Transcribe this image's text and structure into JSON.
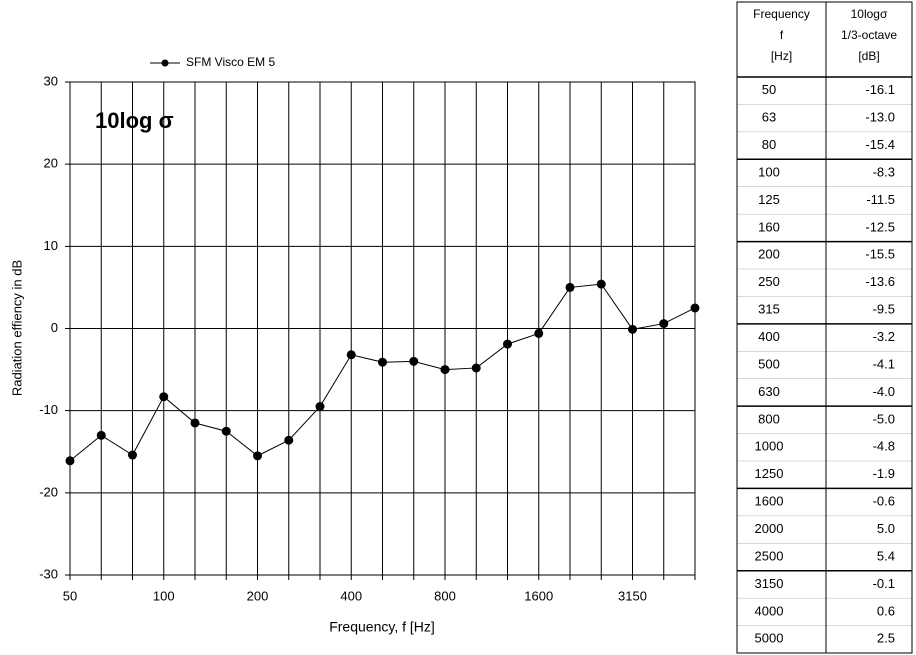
{
  "chart_data": {
    "type": "line",
    "annotation": "10log σ",
    "xlabel": "Frequency, f [Hz]",
    "ylabel": "Radiation effiency in dB",
    "categories": [
      "50",
      null,
      null,
      "100",
      null,
      null,
      "200",
      null,
      null,
      "400",
      null,
      null,
      "800",
      null,
      null,
      "1600",
      null,
      null,
      "3150",
      null,
      null
    ],
    "series": [
      {
        "name": "SFM Visco EM 5",
        "color": "#000000",
        "values": [
          -16.1,
          -13.0,
          -15.4,
          -8.3,
          -11.5,
          -12.5,
          -15.5,
          -13.6,
          -9.5,
          -3.2,
          -4.1,
          -4.0,
          -5.0,
          -4.8,
          -1.9,
          -0.6,
          5.0,
          5.4,
          -0.1,
          0.6,
          2.5
        ]
      }
    ],
    "ylim": [
      -30,
      30
    ],
    "yticks": [
      -30,
      -20,
      -10,
      0,
      10,
      20,
      30
    ],
    "grid": true,
    "legend": "top"
  },
  "table": {
    "header": [
      [
        "Frequency",
        "f",
        "[Hz]"
      ],
      [
        "10logσ",
        "1/3-octave",
        "[dB]"
      ]
    ],
    "rows": [
      [
        "50",
        "-16.1"
      ],
      [
        "63",
        "-13.0"
      ],
      [
        "80",
        "-15.4"
      ],
      [
        "100",
        "-8.3"
      ],
      [
        "125",
        "-11.5"
      ],
      [
        "160",
        "-12.5"
      ],
      [
        "200",
        "-15.5"
      ],
      [
        "250",
        "-13.6"
      ],
      [
        "315",
        "-9.5"
      ],
      [
        "400",
        "-3.2"
      ],
      [
        "500",
        "-4.1"
      ],
      [
        "630",
        "-4.0"
      ],
      [
        "800",
        "-5.0"
      ],
      [
        "1000",
        "-4.8"
      ],
      [
        "1250",
        "-1.9"
      ],
      [
        "1600",
        "-0.6"
      ],
      [
        "2000",
        "5.0"
      ],
      [
        "2500",
        "5.4"
      ],
      [
        "3150",
        "-0.1"
      ],
      [
        "4000",
        "0.6"
      ],
      [
        "5000",
        "2.5"
      ]
    ]
  }
}
